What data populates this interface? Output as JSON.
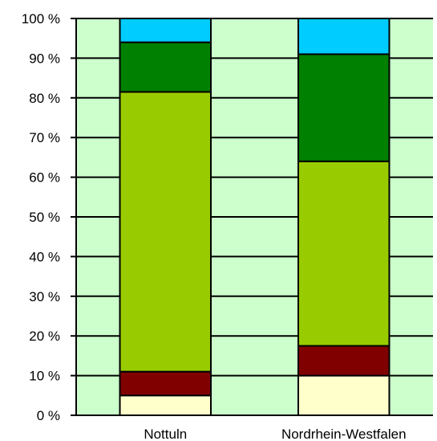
{
  "chart_data": {
    "type": "bar",
    "stacked": true,
    "percent": true,
    "categories": [
      "Nottuln",
      "Nordrhein-Westfalen"
    ],
    "y_ticks": [
      "0 %",
      "10 %",
      "20 %",
      "30 %",
      "40 %",
      "50 %",
      "60 %",
      "70 %",
      "80 %",
      "90 %",
      "100 %"
    ],
    "ylim": [
      0,
      100
    ],
    "grid": true,
    "plot_background": "#ccffcc",
    "series": [
      {
        "color": "#ffffcc",
        "values": [
          5.0,
          10.0
        ]
      },
      {
        "color": "#800000",
        "values": [
          6.0,
          7.5
        ]
      },
      {
        "color": "#99cc00",
        "values": [
          70.5,
          46.5
        ]
      },
      {
        "color": "#008000",
        "values": [
          12.5,
          27.0
        ]
      },
      {
        "color": "#00ccff",
        "values": [
          6.0,
          9.0
        ]
      }
    ]
  }
}
